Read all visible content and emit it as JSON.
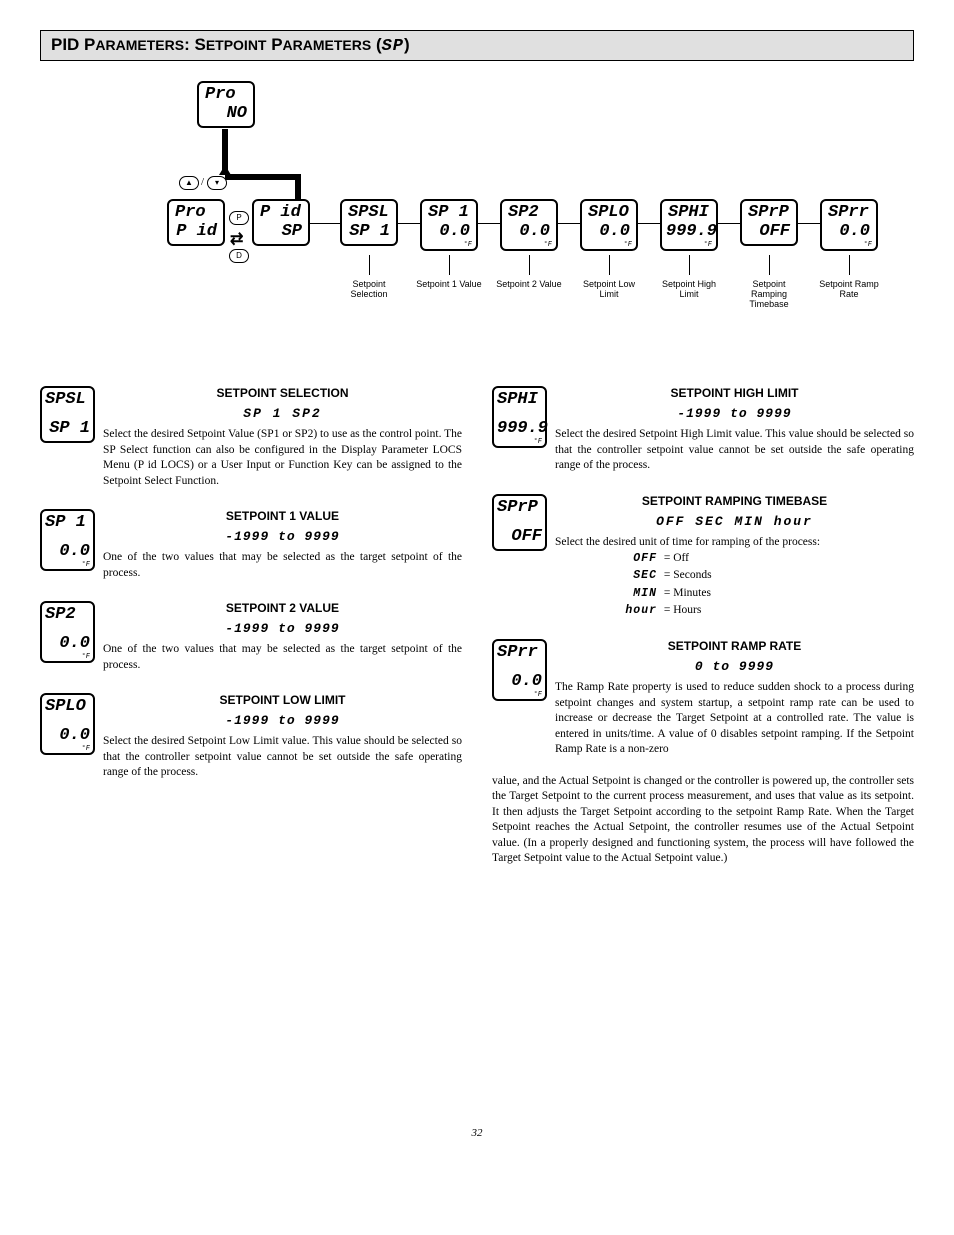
{
  "header": "PID Parameters: Setpoint Parameters (SP)",
  "header_seg": "SP",
  "diagram": {
    "top_box": {
      "l1": "Pro",
      "l2": "NO"
    },
    "menu1": {
      "l1": "Pro",
      "l2": "P id"
    },
    "menu2": {
      "l1": "P id",
      "l2": "SP"
    },
    "chain": [
      {
        "l1": "SPSL",
        "l2": "SP 1",
        "cap": "Setpoint Selection"
      },
      {
        "l1": "SP 1",
        "l2": "0.0",
        "unit": "°F",
        "cap": "Setpoint 1 Value"
      },
      {
        "l1": "SP2",
        "l2": "0.0",
        "unit": "°F",
        "cap": "Setpoint 2 Value"
      },
      {
        "l1": "SPLO",
        "l2": "0.0",
        "unit": "°F",
        "cap": "Setpoint Low Limit"
      },
      {
        "l1": "SPHI",
        "l2": "999.9",
        "unit": "°F",
        "cap": "Setpoint High Limit"
      },
      {
        "l1": "SPrP",
        "l2": "OFF",
        "cap": "Setpoint Ramping Timebase"
      },
      {
        "l1": "SPrr",
        "l2": "0.0",
        "unit": "°F",
        "cap": "Setpoint Ramp Rate"
      }
    ]
  },
  "left": [
    {
      "code": "SPSL",
      "val": "SP 1",
      "title": "SETPOINT SELECTION",
      "opts": "SP 1    SP2",
      "text": "Select the desired Setpoint Value (SP1 or SP2) to use as the control point. The SP Select function can also be configured in the Display Parameter LOCS Menu (P id LOCS) or a User Input or Function Key can be assigned to the Setpoint Select Function."
    },
    {
      "code": "SP 1",
      "val": "0.0",
      "unit": "°F",
      "title": "SETPOINT 1 VALUE",
      "range": "-1999 to 9999",
      "text": "One of the two values that may be selected as the target setpoint of the process."
    },
    {
      "code": "SP2",
      "val": "0.0",
      "unit": "°F",
      "title": "SETPOINT 2 VALUE",
      "range": "-1999 to 9999",
      "text": "One of the two values that may be selected as the target setpoint of the process."
    },
    {
      "code": "SPLO",
      "val": "0.0",
      "unit": "°F",
      "title": "SETPOINT LOW LIMIT",
      "range": "-1999 to 9999",
      "text": "Select the desired Setpoint Low Limit value. This value should be selected so that the controller setpoint value cannot be set outside the safe operating range of the process."
    }
  ],
  "right": [
    {
      "code": "SPHI",
      "val": "999.9",
      "unit": "°F",
      "title": "SETPOINT HIGH LIMIT",
      "range": "-1999 to 9999",
      "text": "Select the desired Setpoint High Limit value. This value should be selected so that the controller setpoint value cannot be set outside the safe operating range of the process."
    },
    {
      "code": "SPrP",
      "val": "OFF",
      "title": "SETPOINT RAMPING TIMEBASE",
      "opts": "OFF  SEC   MIN  hour",
      "text": "Select the desired unit of time for ramping of the process:",
      "list": [
        {
          "c": "OFF",
          "d": "= Off"
        },
        {
          "c": "SEC",
          "d": "= Seconds"
        },
        {
          "c": "MIN",
          "d": "= Minutes"
        },
        {
          "c": "hour",
          "d": "= Hours"
        }
      ]
    },
    {
      "code": "SPrr",
      "val": "0.0",
      "unit": "°F",
      "title": "SETPOINT RAMP RATE",
      "range": "0 to 9999",
      "text": "The Ramp Rate property is used to reduce sudden shock to a process during setpoint changes and system startup, a setpoint ramp rate can be used to increase or decrease the Target Setpoint at a controlled rate. The value is entered in units/time. A value of 0 disables setpoint ramping. If the Setpoint Ramp Rate is a non-zero",
      "cont": "value, and the Actual Setpoint is changed or the controller is powered up, the controller sets the Target Setpoint to the current process measurement, and uses that value as its setpoint. It then adjusts the Target Setpoint according to the setpoint Ramp Rate. When the Target Setpoint reaches the Actual Setpoint, the controller resumes use of the Actual Setpoint value. (In a properly designed and functioning system, the process will have followed the Target Setpoint value to the Actual Setpoint value.)"
    }
  ],
  "pagenum": "32"
}
